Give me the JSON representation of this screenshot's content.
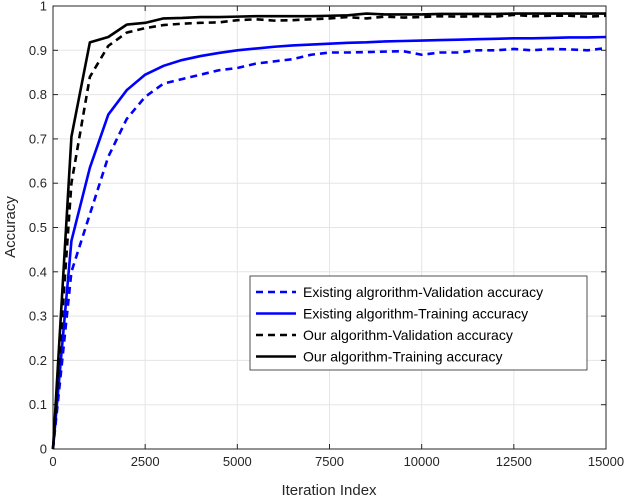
{
  "chart_data": {
    "type": "line",
    "xlabel": "Iteration Index",
    "ylabel": "Accuracy",
    "xlim": [
      0,
      15000
    ],
    "ylim": [
      0,
      1
    ],
    "xticks": [
      0,
      2500,
      5000,
      7500,
      10000,
      12500,
      15000
    ],
    "yticks": [
      0,
      0.1,
      0.2,
      0.3,
      0.4,
      0.5,
      0.6,
      0.7,
      0.8,
      0.9,
      1
    ],
    "grid": true,
    "legend_position": "bottom-right",
    "series": [
      {
        "name": "Existing algrorithm-Validation accuracy",
        "color": "#0000ff",
        "style": "dashed",
        "x": [
          0,
          500,
          1000,
          1500,
          2000,
          2500,
          3000,
          3500,
          4000,
          4500,
          5000,
          5500,
          6000,
          6500,
          7000,
          7500,
          8000,
          8500,
          9000,
          9500,
          10000,
          10500,
          11000,
          11500,
          12000,
          12500,
          13000,
          13500,
          14000,
          14500,
          15000
        ],
        "y": [
          0,
          0.4,
          0.53,
          0.66,
          0.745,
          0.795,
          0.825,
          0.835,
          0.845,
          0.855,
          0.86,
          0.87,
          0.875,
          0.88,
          0.89,
          0.895,
          0.895,
          0.896,
          0.897,
          0.898,
          0.89,
          0.895,
          0.895,
          0.9,
          0.9,
          0.903,
          0.9,
          0.903,
          0.902,
          0.9,
          0.905
        ]
      },
      {
        "name": "Existing algorithm-Training accuracy",
        "color": "#0000ff",
        "style": "solid",
        "x": [
          0,
          500,
          1000,
          1500,
          2000,
          2500,
          3000,
          3500,
          4000,
          4500,
          5000,
          5500,
          6000,
          6500,
          7000,
          7500,
          8000,
          8500,
          9000,
          9500,
          10000,
          10500,
          11000,
          11500,
          12000,
          12500,
          13000,
          13500,
          14000,
          14500,
          15000
        ],
        "y": [
          0,
          0.47,
          0.635,
          0.755,
          0.81,
          0.845,
          0.865,
          0.878,
          0.887,
          0.894,
          0.9,
          0.904,
          0.908,
          0.911,
          0.913,
          0.915,
          0.917,
          0.918,
          0.92,
          0.921,
          0.922,
          0.923,
          0.924,
          0.925,
          0.926,
          0.927,
          0.927,
          0.928,
          0.929,
          0.929,
          0.93
        ]
      },
      {
        "name": "Our algorithm-Validation accuracy",
        "color": "#000000",
        "style": "dashed",
        "x": [
          0,
          500,
          1000,
          1500,
          2000,
          2500,
          3000,
          3500,
          4000,
          4500,
          5000,
          5500,
          6000,
          6500,
          7000,
          7500,
          8000,
          8500,
          9000,
          9500,
          10000,
          10500,
          11000,
          11500,
          12000,
          12500,
          13000,
          13500,
          14000,
          14500,
          15000
        ],
        "y": [
          0,
          0.6,
          0.84,
          0.91,
          0.94,
          0.95,
          0.957,
          0.96,
          0.962,
          0.963,
          0.968,
          0.97,
          0.967,
          0.968,
          0.97,
          0.972,
          0.975,
          0.972,
          0.976,
          0.974,
          0.975,
          0.977,
          0.976,
          0.977,
          0.976,
          0.98,
          0.977,
          0.978,
          0.978,
          0.976,
          0.978
        ]
      },
      {
        "name": "Our algorithm-Training accuracy",
        "color": "#000000",
        "style": "solid",
        "x": [
          0,
          500,
          1000,
          1500,
          2000,
          2500,
          3000,
          3500,
          4000,
          4500,
          5000,
          5500,
          6000,
          6500,
          7000,
          7500,
          8000,
          8500,
          9000,
          9500,
          10000,
          10500,
          11000,
          11500,
          12000,
          12500,
          13000,
          13500,
          14000,
          14500,
          15000
        ],
        "y": [
          0,
          0.705,
          0.918,
          0.93,
          0.958,
          0.962,
          0.972,
          0.973,
          0.975,
          0.975,
          0.976,
          0.977,
          0.977,
          0.977,
          0.977,
          0.978,
          0.979,
          0.983,
          0.981,
          0.981,
          0.981,
          0.982,
          0.982,
          0.982,
          0.982,
          0.983,
          0.983,
          0.983,
          0.983,
          0.983,
          0.983
        ]
      }
    ]
  }
}
